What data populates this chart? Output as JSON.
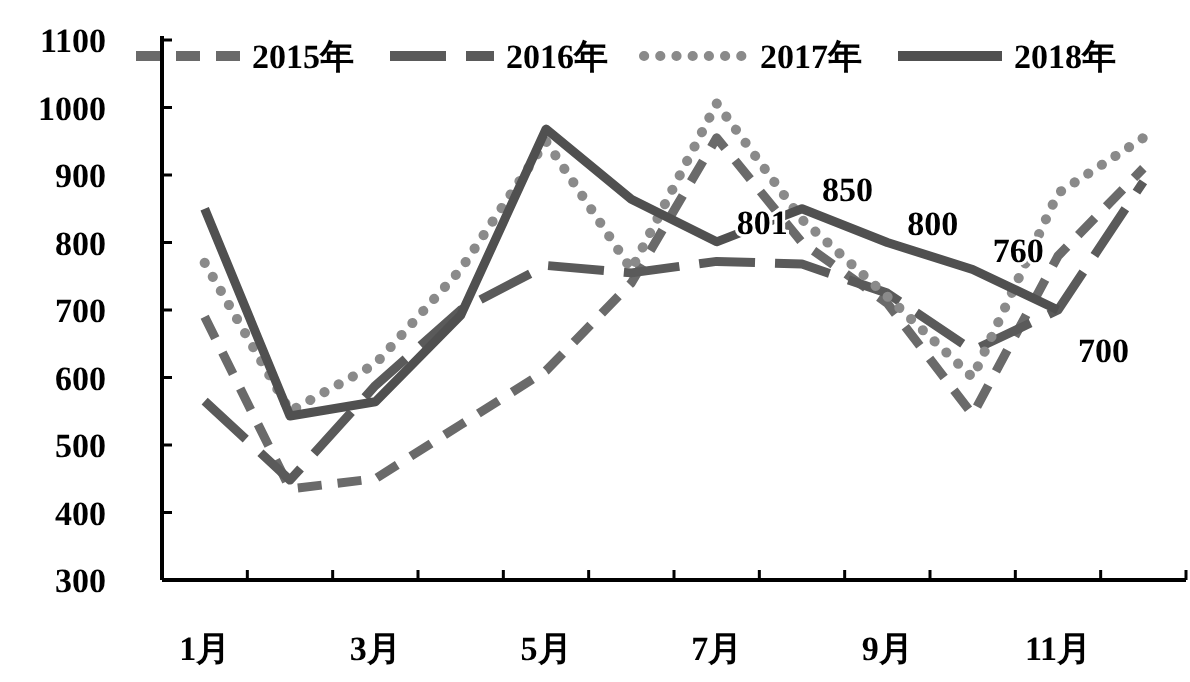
{
  "chart_data": {
    "type": "line",
    "categories": [
      "1月",
      null,
      "3月",
      null,
      "5月",
      null,
      "7月",
      null,
      "9月",
      null,
      "11月",
      null
    ],
    "series": [
      {
        "name": "2015年",
        "color": "#6a6a6a",
        "line_style": "dashed",
        "values": [
          690,
          435,
          450,
          530,
          610,
          740,
          955,
          800,
          710,
          545,
          780,
          910
        ]
      },
      {
        "name": "2016年",
        "color": "#5a5a5a",
        "line_style": "longdash",
        "values": [
          565,
          448,
          588,
          700,
          766,
          755,
          772,
          768,
          725,
          640,
          700,
          890
        ]
      },
      {
        "name": "2017年",
        "color": "#8a8a8a",
        "line_style": "dotted",
        "values": [
          770,
          550,
          620,
          760,
          950,
          760,
          1006,
          834,
          720,
          600,
          873,
          955
        ]
      },
      {
        "name": "2018年",
        "color": "#505050",
        "line_style": "solid",
        "values": [
          850,
          543,
          564,
          692,
          968,
          864,
          801,
          850,
          800,
          760,
          700,
          null
        ],
        "value_labels": [
          null,
          null,
          null,
          null,
          null,
          null,
          "801",
          "850",
          "800",
          "760",
          "700",
          null
        ]
      }
    ],
    "ylim": [
      300,
      1100
    ],
    "yticks": [
      300,
      400,
      500,
      600,
      700,
      800,
      900,
      1000,
      1100
    ],
    "grid": false,
    "legend": "top",
    "marker": "none"
  }
}
